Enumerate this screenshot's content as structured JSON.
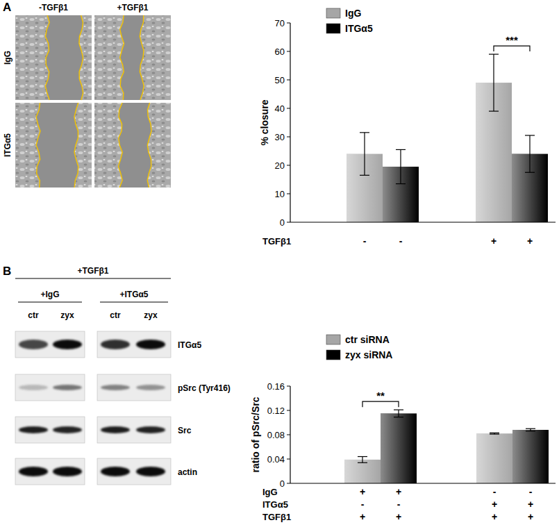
{
  "figure": {
    "panel_labels": [
      "A",
      "B"
    ],
    "wound_images": {
      "column_labels": [
        "-TGFβ1",
        "+TGFβ1"
      ],
      "row_labels": [
        "IgG",
        "ITGα5"
      ]
    },
    "western_blot": {
      "header": "+TGFβ1",
      "groups": [
        "+IgG",
        "+ITGα5"
      ],
      "lanes": [
        "ctr",
        "zyx"
      ],
      "rows": [
        "ITGα5",
        "pSrc (Tyr416)",
        "Src",
        "actin"
      ]
    }
  },
  "chart_data": [
    {
      "type": "bar",
      "y_label": "% closure",
      "categories": [
        null,
        null
      ],
      "series": [
        {
          "name": "IgG",
          "color": "#a6a6a6",
          "values": [
            24,
            49
          ],
          "errors": [
            7.5,
            10
          ]
        },
        {
          "name": "ITGα5",
          "color": "#000000",
          "values": [
            19.5,
            24
          ],
          "errors": [
            6,
            6.5
          ]
        }
      ],
      "ylim": [
        0,
        70
      ],
      "yticks": [
        0,
        10,
        20,
        30,
        40,
        50,
        60,
        70
      ],
      "legend": "top-left",
      "condition_rows": [
        {
          "label": "TGFβ1",
          "values": [
            "-",
            "-",
            "+",
            "+"
          ]
        }
      ],
      "annotations": [
        {
          "text": "***",
          "category": 1
        }
      ]
    },
    {
      "type": "bar",
      "y_label": "ratio of pSrc/Src",
      "categories": [
        null,
        null
      ],
      "series": [
        {
          "name": "ctr siRNA",
          "color": "#a6a6a6",
          "values": [
            0.039,
            0.082
          ],
          "errors": [
            0.005,
            0.001
          ]
        },
        {
          "name": "zyx siRNA",
          "color": "#000000",
          "values": [
            0.115,
            0.088
          ],
          "errors": [
            0.006,
            0.002
          ]
        }
      ],
      "ylim": [
        0,
        0.16
      ],
      "yticks": [
        0,
        0.04,
        0.08,
        0.12,
        0.16
      ],
      "legend": "top-left",
      "condition_rows": [
        {
          "label": "IgG",
          "values": [
            "+",
            "+",
            "-",
            "-"
          ]
        },
        {
          "label": "ITGα5",
          "values": [
            "-",
            "-",
            "+",
            "+"
          ]
        },
        {
          "label": "TGFβ1",
          "values": [
            "+",
            "+",
            "+",
            "+"
          ]
        }
      ],
      "annotations": [
        {
          "text": "**",
          "category": 0
        }
      ]
    }
  ]
}
